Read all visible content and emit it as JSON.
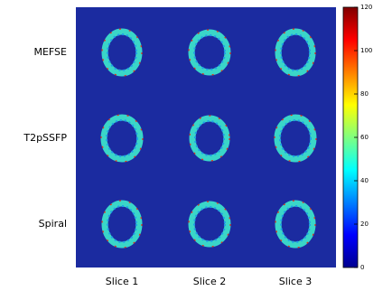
{
  "chart_data": {
    "type": "heatmap",
    "rows": [
      "MEFSE",
      "T2pSSFP",
      "Spiral"
    ],
    "columns": [
      "Slice 1",
      "Slice 2",
      "Slice 3"
    ],
    "colorbar": {
      "lim": [
        0,
        120
      ],
      "ticks": [
        0,
        20,
        40,
        60,
        80,
        100,
        120
      ]
    }
  }
}
